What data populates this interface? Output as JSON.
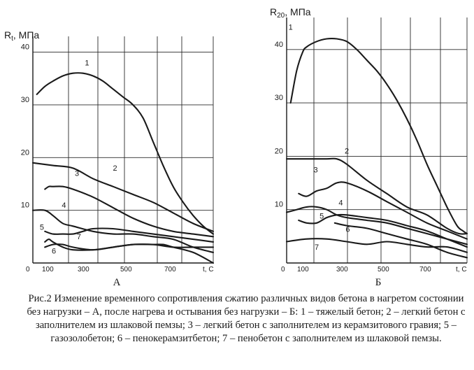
{
  "chart_data": [
    {
      "type": "line",
      "panel_label": "А",
      "ylabel": "Rt, МПа",
      "xlabel": "t, C",
      "xlim": [
        0,
        900
      ],
      "ylim": [
        0,
        43
      ],
      "x_ticks": [
        "0",
        "100",
        "300",
        "500",
        "700",
        "t, C"
      ],
      "y_ticks": [
        "10",
        "20",
        "30",
        "40"
      ],
      "grid": true,
      "series": [
        {
          "name": "1",
          "x": [
            20,
            60,
            100,
            150,
            200,
            250,
            300,
            350,
            400,
            450,
            500,
            550,
            600,
            650,
            700,
            750,
            800,
            850,
            900
          ],
          "y": [
            32,
            33.5,
            34.5,
            35.5,
            36,
            36,
            35.5,
            34.5,
            33,
            31.5,
            30,
            27.5,
            23,
            18.5,
            14.5,
            11.5,
            9,
            7,
            5.5
          ]
        },
        {
          "name": "2",
          "x": [
            0,
            100,
            200,
            300,
            400,
            500,
            600,
            700,
            800,
            900
          ],
          "y": [
            19,
            18.5,
            18,
            16,
            14.5,
            13,
            11.5,
            9.5,
            7.5,
            6
          ]
        },
        {
          "name": "3",
          "x": [
            60,
            80,
            100,
            150,
            200,
            300,
            400,
            500,
            600,
            700,
            800,
            900
          ],
          "y": [
            14,
            14.5,
            14.5,
            14.5,
            14,
            12.5,
            10.5,
            8.5,
            7,
            6,
            5.5,
            5
          ]
        },
        {
          "name": "4",
          "x": [
            0,
            60,
            100,
            150,
            200,
            300,
            400,
            500,
            600,
            700,
            800,
            900
          ],
          "y": [
            10,
            10,
            9,
            7.5,
            7,
            6,
            5.5,
            5.5,
            5,
            4.5,
            3,
            2
          ]
        },
        {
          "name": "5",
          "x": [
            60,
            100,
            150,
            200,
            250,
            300,
            400,
            500,
            600,
            700,
            800,
            900
          ],
          "y": [
            6,
            5.5,
            5.5,
            5.5,
            6,
            6.5,
            6.5,
            6,
            5.5,
            5,
            4.5,
            4
          ]
        },
        {
          "name": "6",
          "x": [
            60,
            80,
            100,
            150,
            200,
            300,
            400,
            500,
            600,
            650,
            700,
            800,
            900
          ],
          "y": [
            4,
            4.5,
            4,
            3,
            2.5,
            2.5,
            3,
            3.5,
            3.5,
            3.5,
            3,
            2,
            0
          ]
        },
        {
          "name": "7",
          "x": [
            60,
            100,
            150,
            200,
            300,
            400,
            500,
            600,
            700,
            800,
            900
          ],
          "y": [
            3,
            3.5,
            3.5,
            3,
            2.5,
            3,
            3.5,
            3.5,
            3,
            3,
            3
          ]
        }
      ],
      "curve_labels": [
        {
          "text": "1",
          "x": 270,
          "y": 37.5
        },
        {
          "text": "2",
          "x": 410,
          "y": 17.5
        },
        {
          "text": "3",
          "x": 220,
          "y": 16.5
        },
        {
          "text": "4",
          "x": 155,
          "y": 10.5
        },
        {
          "text": "5",
          "x": 45,
          "y": 6.3
        },
        {
          "text": "6",
          "x": 105,
          "y": 1.8
        },
        {
          "text": "7",
          "x": 230,
          "y": 4.5
        }
      ]
    },
    {
      "type": "line",
      "panel_label": "Б",
      "ylabel": "R20, МПа",
      "xlabel": "t, C",
      "xlim": [
        0,
        900
      ],
      "ylim": [
        0,
        46
      ],
      "x_ticks": [
        "0",
        "100",
        "300",
        "500",
        "700",
        "t, C"
      ],
      "y_ticks": [
        "10",
        "20",
        "30",
        "40"
      ],
      "grid": true,
      "series": [
        {
          "name": "1",
          "x": [
            20,
            50,
            80,
            100,
            150,
            200,
            250,
            300,
            350,
            400,
            450,
            500,
            550,
            600,
            650,
            700,
            750,
            800,
            850,
            880,
            900
          ],
          "y": [
            30,
            36,
            39.5,
            40.5,
            41.5,
            42,
            42,
            41.5,
            40,
            38,
            36,
            33.5,
            30.5,
            27,
            23,
            18.5,
            14.5,
            10.5,
            7,
            6,
            5.5
          ]
        },
        {
          "name": "2",
          "x": [
            0,
            100,
            200,
            250,
            300,
            400,
            500,
            600,
            700,
            800,
            860,
            900
          ],
          "y": [
            19.5,
            19.5,
            19.5,
            19.5,
            18.5,
            15.5,
            13,
            10.5,
            9,
            6.5,
            5.5,
            5.5
          ]
        },
        {
          "name": "3",
          "x": [
            60,
            100,
            150,
            200,
            250,
            300,
            400,
            500,
            600,
            700,
            800,
            900
          ],
          "y": [
            13,
            12.5,
            13.5,
            14,
            15,
            15,
            13.5,
            11.5,
            9.5,
            7.5,
            6,
            4.5
          ]
        },
        {
          "name": "4",
          "x": [
            0,
            50,
            100,
            150,
            200,
            250,
            300,
            400,
            500,
            600,
            700,
            800,
            900
          ],
          "y": [
            9.5,
            10,
            10.5,
            10.5,
            10,
            9,
            8.5,
            8,
            7.5,
            6.5,
            5.5,
            4.5,
            3.5
          ]
        },
        {
          "name": "5",
          "x": [
            60,
            100,
            150,
            200,
            250,
            300,
            400,
            500,
            600,
            700,
            800,
            900
          ],
          "y": [
            8,
            7.5,
            7.5,
            8.5,
            9,
            9,
            8.5,
            8,
            7,
            6,
            4.5,
            3
          ]
        },
        {
          "name": "6",
          "x": [
            240,
            300,
            400,
            500,
            600,
            700,
            800,
            900
          ],
          "y": [
            7.5,
            7,
            6.5,
            5.5,
            4.5,
            3.5,
            2,
            1
          ]
        },
        {
          "name": "7",
          "x": [
            0,
            100,
            200,
            300,
            400,
            500,
            600,
            700,
            800,
            900
          ],
          "y": [
            4,
            4.5,
            4.5,
            4,
            3.5,
            4,
            3.5,
            3,
            3,
            2
          ]
        }
      ],
      "curve_labels": [
        {
          "text": "1",
          "x": 20,
          "y": 43.7
        },
        {
          "text": "2",
          "x": 300,
          "y": 20.5
        },
        {
          "text": "3",
          "x": 145,
          "y": 17
        },
        {
          "text": "4",
          "x": 270,
          "y": 10.8
        },
        {
          "text": "5",
          "x": 175,
          "y": 8.3
        },
        {
          "text": "6",
          "x": 305,
          "y": 5.8
        },
        {
          "text": "7",
          "x": 150,
          "y": 2.5
        }
      ]
    }
  ],
  "caption": "Рис.2 Изменение временного сопротивления сжатию различных видов бетона в нагретом состоянии без нагрузки – А, после нагрева и остывания без нагрузки – Б: 1 – тяжелый бетон; 2 – легкий бетон с заполнителем из шлаковой пемзы; 3 – легкий бетон с заполнителем из керамзитового гравия; 5 – газозолобетон; 6 – пенокерамзитбетон; 7 – пенобетон с заполнителем из шлаковой пемзы."
}
